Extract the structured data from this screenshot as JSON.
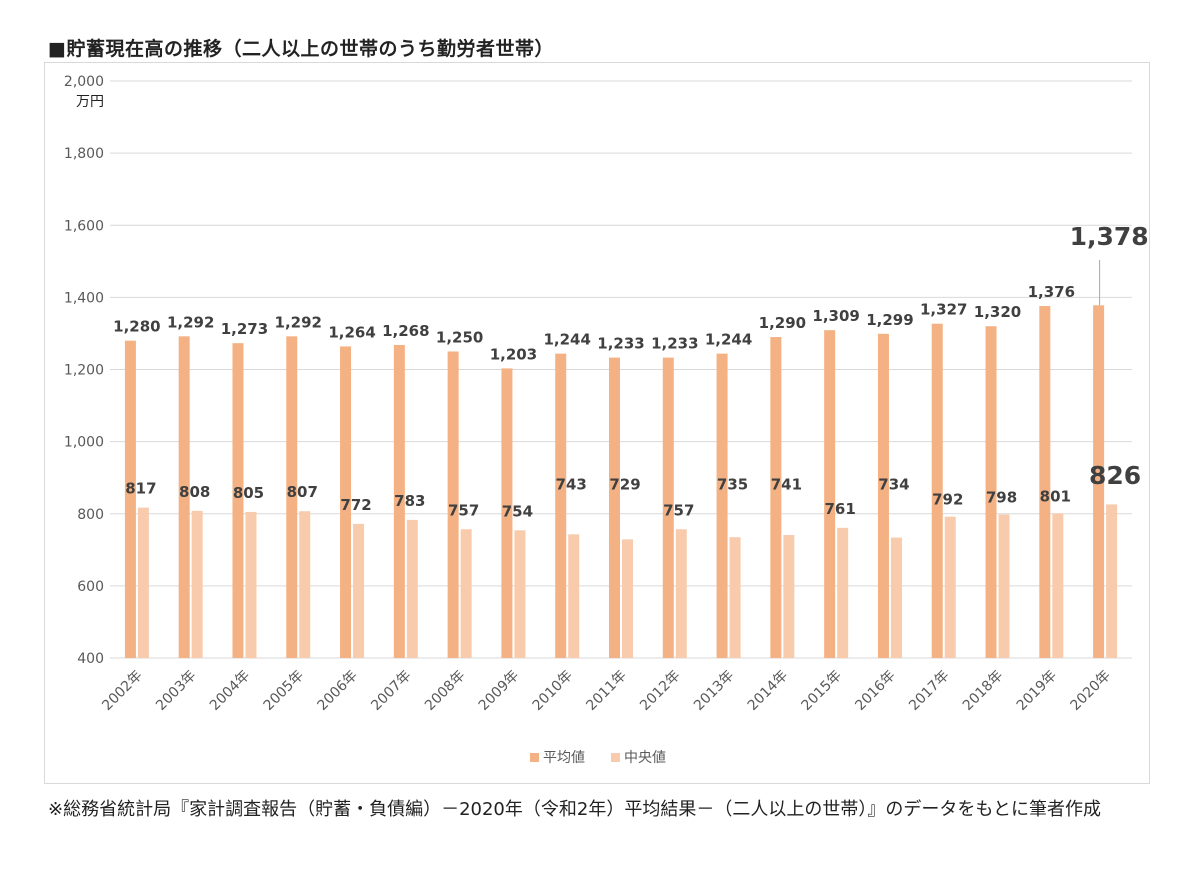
{
  "title": "■貯蓄現在高の推移（二人以上の世帯のうち勤労者世帯）",
  "note": "※総務省統計局『家計調査報告（貯蓄・負債編）－2020年（令和2年）平均結果－（二人以上の世帯）』のデータをもとに筆者作成",
  "colors": {
    "mean": "#f4b183",
    "median": "#f8cbad",
    "grid": "#d9d9d9",
    "axis_text": "#595959",
    "label_text": "#404040"
  },
  "chart_data": {
    "type": "bar",
    "y_unit": "万円",
    "ylim": [
      400,
      2000
    ],
    "yticks": [
      "400",
      "600",
      "800",
      "1,000",
      "1,200",
      "1,400",
      "1,600",
      "1,800",
      "2,000"
    ],
    "grid": true,
    "legend_position": "bottom",
    "categories": [
      "2002年",
      "2003年",
      "2004年",
      "2005年",
      "2006年",
      "2007年",
      "2008年",
      "2009年",
      "2010年",
      "2011年",
      "2012年",
      "2013年",
      "2014年",
      "2015年",
      "2016年",
      "2017年",
      "2018年",
      "2019年",
      "2020年"
    ],
    "series": [
      {
        "name": "平均値",
        "values": [
          1280,
          1292,
          1273,
          1292,
          1264,
          1268,
          1250,
          1203,
          1244,
          1233,
          1233,
          1244,
          1290,
          1309,
          1299,
          1327,
          1320,
          1376,
          1378
        ],
        "labels": [
          "1,280",
          "1,292",
          "1,273",
          "1,292",
          "1,264",
          "1,268",
          "1,250",
          "1,203",
          "1,244",
          "1,233",
          "1,233",
          "1,244",
          "1,290",
          "1,309",
          "1,299",
          "1,327",
          "1,320",
          "1,376",
          "1,378"
        ]
      },
      {
        "name": "中央値",
        "values": [
          817,
          808,
          805,
          807,
          772,
          783,
          757,
          754,
          743,
          729,
          757,
          735,
          741,
          761,
          734,
          792,
          798,
          801,
          826
        ],
        "labels": [
          "817",
          "808",
          "805",
          "807",
          "772",
          "783",
          "757",
          "754",
          "743",
          "729",
          "757",
          "735",
          "741",
          "761",
          "734",
          "792",
          "798",
          "801",
          "826"
        ]
      }
    ]
  }
}
